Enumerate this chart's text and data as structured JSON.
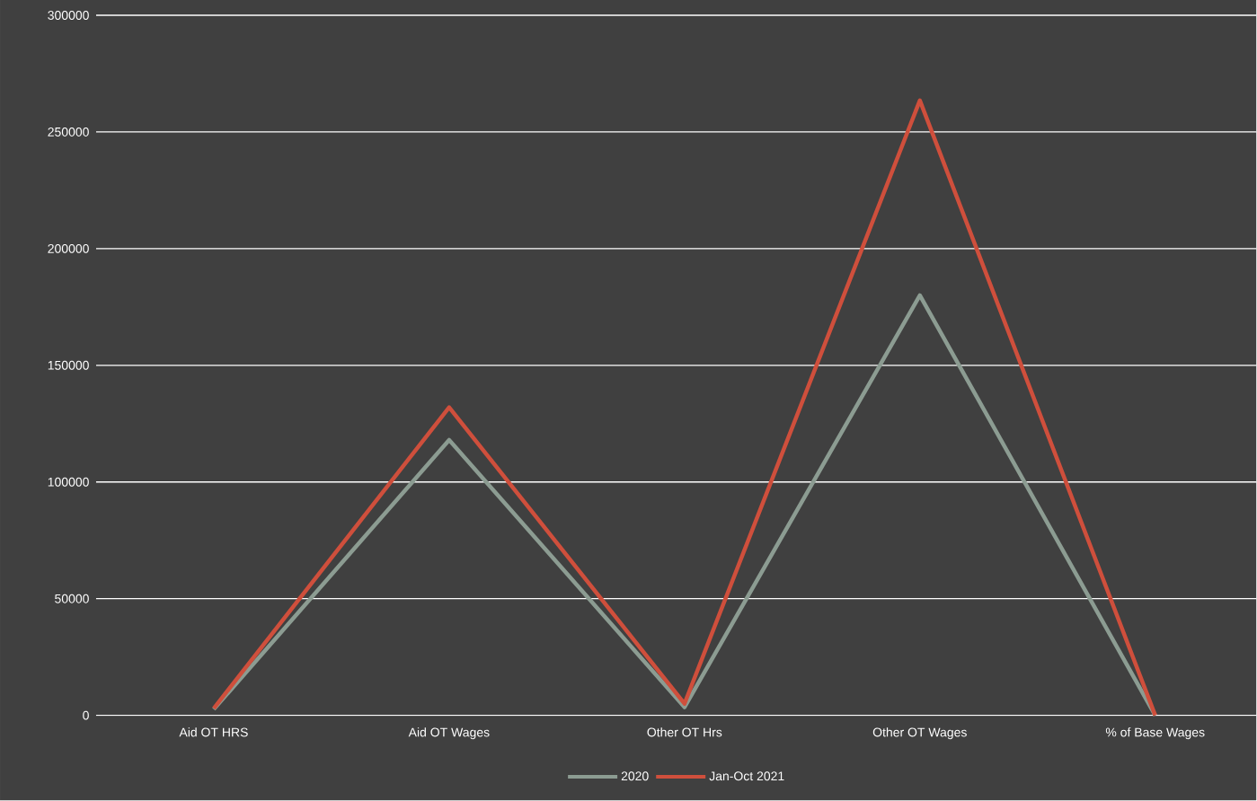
{
  "chart_data": {
    "type": "line",
    "categories": [
      "Aid OT HRS",
      "Aid OT Wages",
      "Other OT Hrs",
      "Other OT Wages",
      "% of Base Wages"
    ],
    "series": [
      {
        "name": "2020",
        "color": "#8c9c92",
        "values": [
          2600,
          118000,
          3500,
          180000,
          0
        ]
      },
      {
        "name": "Jan-Oct 2021",
        "color": "#cf4f3c",
        "values": [
          3000,
          132000,
          5000,
          263500,
          0
        ]
      }
    ],
    "ylim": [
      0,
      300000
    ],
    "yticks": [
      0,
      50000,
      100000,
      150000,
      200000,
      250000,
      300000
    ],
    "grid": "y",
    "legend": "bottom"
  }
}
